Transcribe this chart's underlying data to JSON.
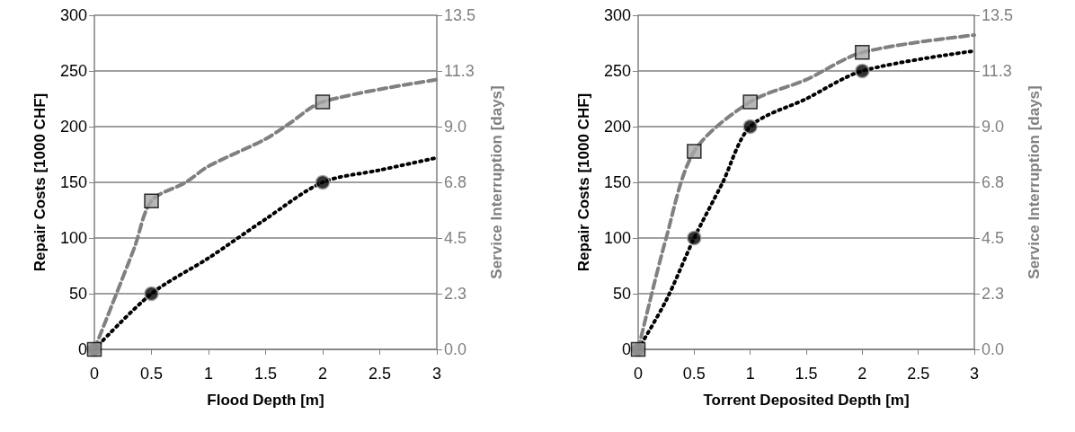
{
  "chart_data": [
    {
      "type": "line",
      "xlabel": "Flood Depth [m]",
      "ylabel": "Repair Costs [1000 CHF]",
      "y2label": "Service Interruption [days]",
      "xlim": [
        0,
        3
      ],
      "xticks": [
        0,
        0.5,
        1,
        1.5,
        2,
        2.5,
        3
      ],
      "ylim": [
        0,
        300
      ],
      "yticks": [
        0,
        50,
        100,
        150,
        200,
        250,
        300
      ],
      "y2lim": [
        0,
        13.5
      ],
      "y2ticks": [
        {
          "value": 0,
          "label": "0.0"
        },
        {
          "value": 2.25,
          "label": "2.3"
        },
        {
          "value": 4.5,
          "label": "4.5"
        },
        {
          "value": 6.75,
          "label": "6.8"
        },
        {
          "value": 9,
          "label": "9.0"
        },
        {
          "value": 11.25,
          "label": "11.3"
        },
        {
          "value": 13.5,
          "label": "13.5"
        }
      ],
      "grid": "y",
      "series": [
        {
          "color": "#000000",
          "line_style": "dotted",
          "marker": "none",
          "x": [
            0,
            0.5,
            1,
            1.5,
            2,
            2.5,
            3
          ],
          "values": [
            0,
            50,
            82,
            117,
            150,
            161,
            172
          ]
        },
        {
          "type": "scatter",
          "color": "#000000",
          "marker": "circle",
          "x": [
            0,
            0.5,
            2
          ],
          "values": [
            0,
            50,
            150
          ]
        },
        {
          "axis": "y2",
          "color": "#808080",
          "line_style": "dashed",
          "marker": "none",
          "x": [
            0,
            0.35,
            0.5,
            0.8,
            1,
            1.5,
            1.7,
            2,
            3
          ],
          "values": [
            0,
            4.1,
            6.0,
            6.75,
            7.4,
            8.5,
            9.1,
            10.0,
            10.9
          ]
        },
        {
          "type": "scatter",
          "axis": "y2",
          "color": "#a6a6a6",
          "marker": "square",
          "x": [
            0,
            0.5,
            2
          ],
          "values": [
            0,
            6.0,
            10.0
          ]
        }
      ]
    },
    {
      "type": "line",
      "xlabel": "Torrent Deposited Depth [m]",
      "ylabel": "Repair Costs [1000 CHF]",
      "y2label": "Service Interruption [days]",
      "xlim": [
        0,
        3
      ],
      "xticks": [
        0,
        0.5,
        1,
        1.5,
        2,
        2.5,
        3
      ],
      "ylim": [
        0,
        300
      ],
      "yticks": [
        0,
        50,
        100,
        150,
        200,
        250,
        300
      ],
      "y2lim": [
        0,
        13.5
      ],
      "y2ticks": [
        {
          "value": 0,
          "label": "0.0"
        },
        {
          "value": 2.25,
          "label": "2.3"
        },
        {
          "value": 4.5,
          "label": "4.5"
        },
        {
          "value": 6.75,
          "label": "6.8"
        },
        {
          "value": 9,
          "label": "9.0"
        },
        {
          "value": 11.25,
          "label": "11.3"
        },
        {
          "value": 13.5,
          "label": "13.5"
        }
      ],
      "grid": "y",
      "series": [
        {
          "color": "#000000",
          "line_style": "dotted",
          "marker": "none",
          "x": [
            0,
            0.25,
            0.5,
            0.75,
            1,
            1.5,
            2,
            3
          ],
          "values": [
            0,
            44,
            100,
            149,
            200,
            225,
            250,
            268
          ]
        },
        {
          "type": "scatter",
          "color": "#000000",
          "marker": "circle",
          "x": [
            0,
            0.5,
            1,
            2
          ],
          "values": [
            0,
            100,
            200,
            250
          ]
        },
        {
          "axis": "y2",
          "color": "#808080",
          "line_style": "dashed",
          "marker": "none",
          "x": [
            0,
            0.25,
            0.5,
            1,
            1.5,
            2,
            3
          ],
          "values": [
            0,
            4.5,
            8.0,
            10.0,
            10.9,
            12.0,
            12.7
          ]
        },
        {
          "type": "scatter",
          "axis": "y2",
          "color": "#a6a6a6",
          "marker": "square",
          "x": [
            0,
            0.5,
            1,
            2
          ],
          "values": [
            0,
            8.0,
            10.0,
            12.0
          ]
        }
      ]
    }
  ]
}
